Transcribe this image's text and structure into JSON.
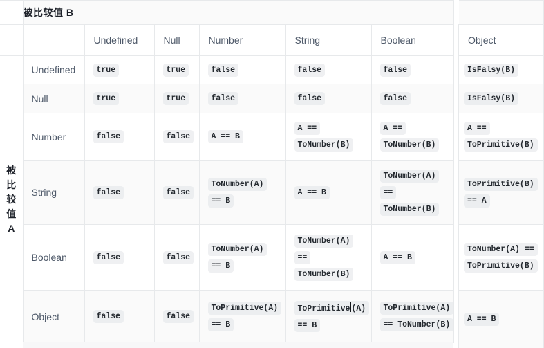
{
  "table": {
    "axis_b_label": "被比较值 B",
    "axis_a_label": "被比较值 A",
    "axis_a_chars": [
      "被",
      "比",
      "较",
      "值",
      "A"
    ],
    "column_headers": [
      "Undefined",
      "Null",
      "Number",
      "String",
      "Boolean",
      "Object"
    ],
    "caret_marker": "‸",
    "rows": [
      {
        "label": "Undefined",
        "cells": [
          [
            "true"
          ],
          [
            "true"
          ],
          [
            "false"
          ],
          [
            "false"
          ],
          [
            "false"
          ],
          [
            "IsFalsy(B)"
          ]
        ]
      },
      {
        "label": "Null",
        "cells": [
          [
            "true"
          ],
          [
            "true"
          ],
          [
            "false"
          ],
          [
            "false"
          ],
          [
            "false"
          ],
          [
            "IsFalsy(B)"
          ]
        ]
      },
      {
        "label": "Number",
        "cells": [
          [
            "false"
          ],
          [
            "false"
          ],
          [
            "A == B"
          ],
          [
            "A ==",
            "ToNumber(B)"
          ],
          [
            "A ==",
            "ToNumber(B)"
          ],
          [
            "A ==",
            "ToPrimitive(B)"
          ]
        ]
      },
      {
        "label": "String",
        "cells": [
          [
            "false"
          ],
          [
            "false"
          ],
          [
            "ToNumber(A)",
            "== B"
          ],
          [
            "A == B"
          ],
          [
            "ToNumber(A)",
            "==",
            "ToNumber(B)"
          ],
          [
            "ToPrimitive(B)",
            "== A"
          ]
        ]
      },
      {
        "label": "Boolean",
        "cells": [
          [
            "false"
          ],
          [
            "false"
          ],
          [
            "ToNumber(A)",
            "== B"
          ],
          [
            "ToNumber(A)",
            "==",
            "ToNumber(B)"
          ],
          [
            "A == B"
          ],
          [
            "ToNumber(A) ==",
            "ToPrimitive(B)"
          ]
        ]
      },
      {
        "label": "Object",
        "cells": [
          [
            "false"
          ],
          [
            "false"
          ],
          [
            "ToPrimitive(A)",
            "== B"
          ],
          [
            "ToPrimitive‸(A)",
            "== B"
          ],
          [
            "ToPrimitive(A)",
            "== ToNumber(B)"
          ],
          [
            "A == B"
          ]
        ]
      }
    ],
    "colors": {
      "border": "#e7e9eb",
      "header_bg": "#fafafa",
      "zebra_bg": "#fafafa",
      "chip_bg": "#eff0f2",
      "label_text": "#4e5969",
      "strong_text": "#1d2129",
      "code_text": "#24292f",
      "strip_bg": "#f7f7f8"
    }
  }
}
